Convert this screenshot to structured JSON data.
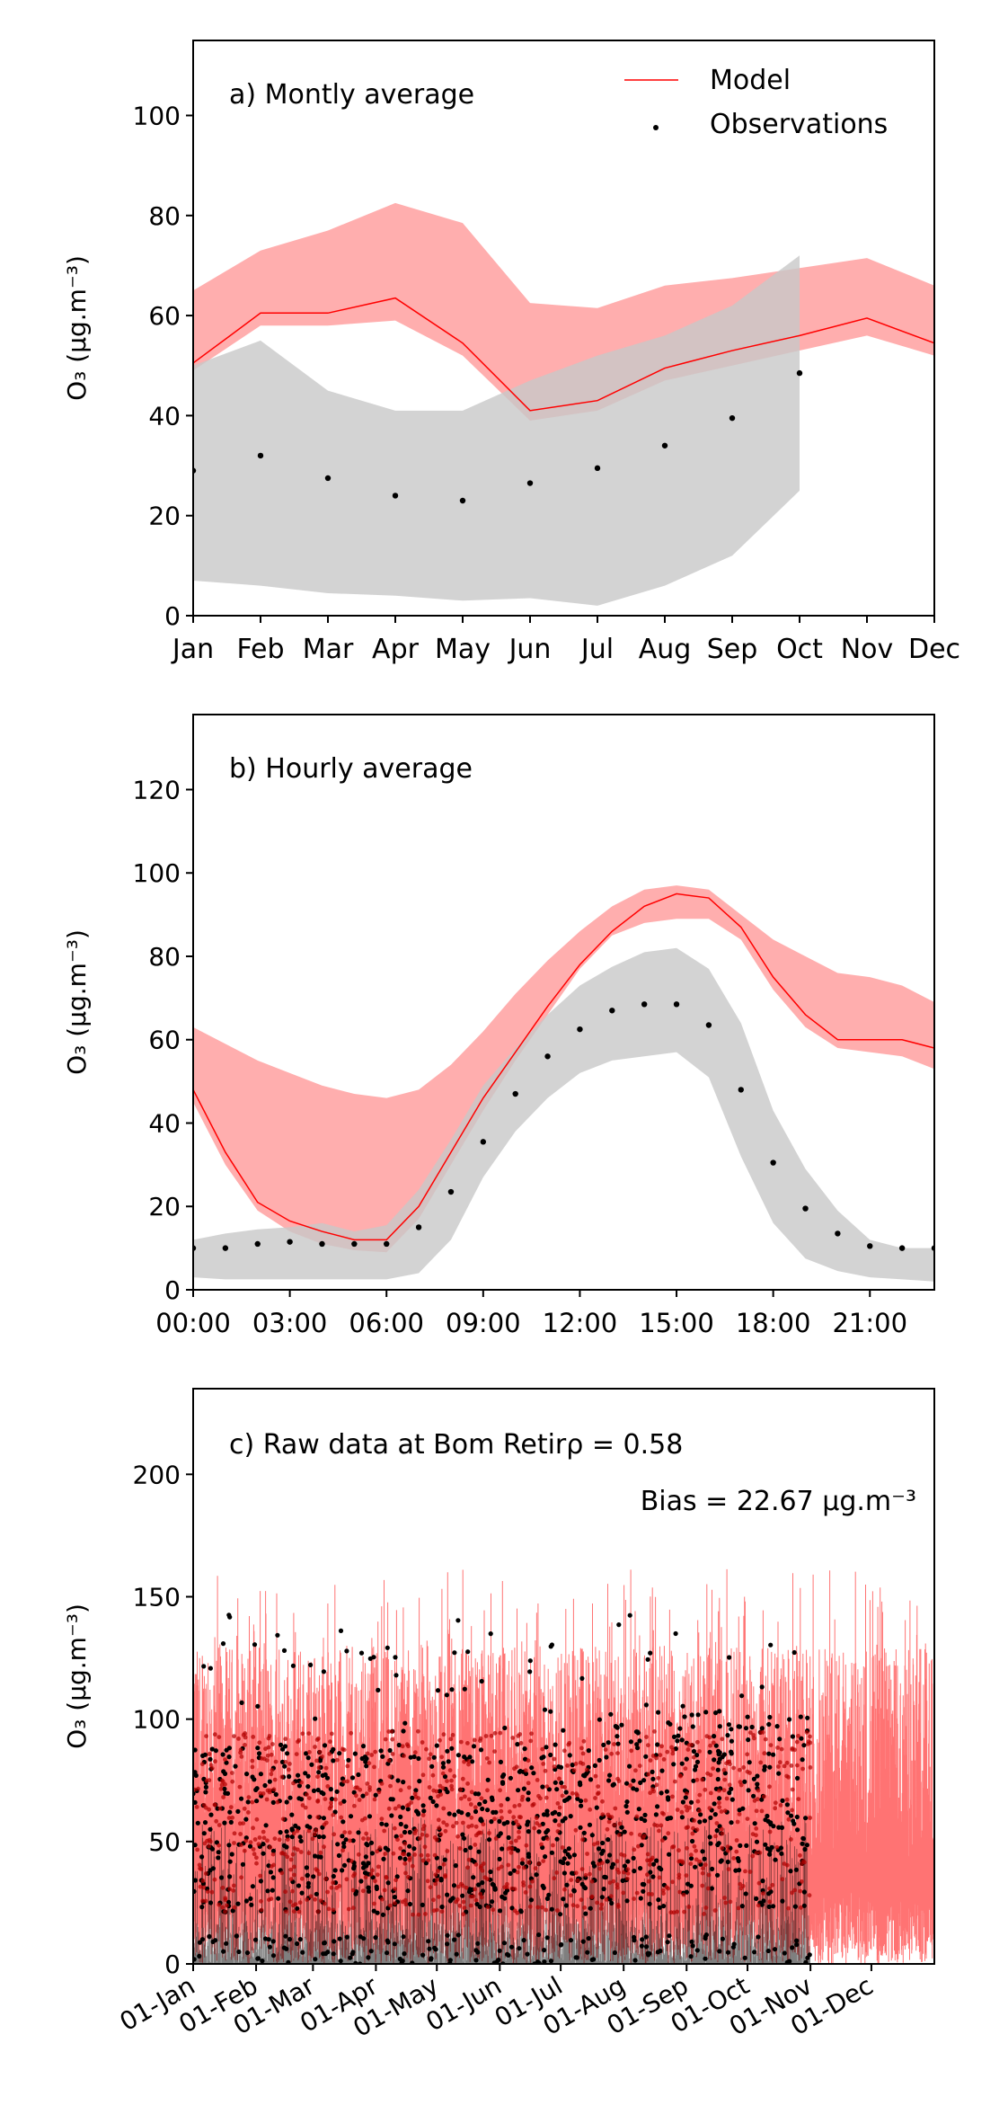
{
  "colors": {
    "model": "#ff0000",
    "model_band": "#ff9a9a",
    "obs": "#000000",
    "obs_band": "#c8c8c8",
    "axis": "#000000"
  },
  "chart_data": [
    {
      "type": "line",
      "panel_label": "a) Montly average",
      "ylabel": "O₃ (μg.m⁻³)",
      "ylim": [
        0,
        115
      ],
      "yticks": [
        0,
        20,
        40,
        60,
        80,
        100
      ],
      "categories": [
        "Jan",
        "Feb",
        "Mar",
        "Apr",
        "May",
        "Jun",
        "Jul",
        "Aug",
        "Sep",
        "Oct",
        "Nov",
        "Dec"
      ],
      "legend": {
        "placement": "top-right",
        "model_label": "Model",
        "obs_label": "Observations"
      },
      "model": {
        "values": [
          50.5,
          60.5,
          60.5,
          63.5,
          54.5,
          41,
          43,
          49.5,
          53,
          56,
          59.5,
          54.5
        ],
        "band_low": [
          49,
          58,
          58,
          59,
          52,
          39,
          41,
          47,
          50,
          53,
          56,
          52
        ],
        "band_high": [
          65,
          73,
          77,
          82.5,
          78.5,
          62.5,
          61.5,
          66,
          67.5,
          69.5,
          71.5,
          66
        ]
      },
      "obs": {
        "values": [
          29,
          32,
          27.5,
          24,
          23,
          26.5,
          29.5,
          34,
          39.5,
          48.5
        ],
        "band_low": [
          7,
          6,
          4.5,
          4,
          3,
          3.5,
          2,
          6,
          12,
          25
        ],
        "band_high": [
          50,
          55,
          45,
          41,
          41,
          47,
          52,
          56,
          62,
          72
        ]
      }
    },
    {
      "type": "line",
      "panel_label": "b) Hourly average",
      "ylabel": "O₃ (μg.m⁻³)",
      "ylim": [
        0,
        138
      ],
      "yticks": [
        0,
        20,
        40,
        60,
        80,
        100,
        120
      ],
      "xticks": [
        "00:00",
        "03:00",
        "06:00",
        "09:00",
        "12:00",
        "15:00",
        "18:00",
        "21:00"
      ],
      "x_hours": [
        0,
        1,
        2,
        3,
        4,
        5,
        6,
        7,
        8,
        9,
        10,
        11,
        12,
        13,
        14,
        15,
        16,
        17,
        18,
        19,
        20,
        21,
        22,
        23
      ],
      "model": {
        "values": [
          48,
          33,
          21,
          16.5,
          14,
          12,
          12,
          20,
          33,
          46,
          57,
          68,
          78,
          86,
          92,
          95,
          94,
          87,
          75,
          66,
          60,
          60,
          60,
          58
        ],
        "band_low": [
          45,
          30,
          19,
          14,
          11,
          9.5,
          9,
          17,
          30,
          43,
          55,
          66,
          77,
          85,
          88,
          89,
          89,
          84,
          72,
          63,
          58,
          57,
          56,
          53
        ],
        "band_high": [
          63,
          59,
          55,
          52,
          49,
          47,
          46,
          48,
          54,
          62,
          71,
          79,
          86,
          92,
          96,
          97,
          96,
          90,
          84,
          80,
          76,
          75,
          73,
          69
        ]
      },
      "obs": {
        "values": [
          10,
          10,
          11,
          11.5,
          11,
          11,
          11,
          15,
          23.5,
          35.5,
          47,
          56,
          62.5,
          67,
          68.5,
          68.5,
          63.5,
          48,
          30.5,
          19.5,
          13.5,
          10.5,
          10,
          10
        ],
        "band_low": [
          3,
          2.5,
          2.5,
          2.5,
          2.5,
          2.5,
          2.5,
          4,
          12,
          27,
          38,
          46,
          52,
          55,
          56,
          57,
          51,
          32,
          16,
          7.5,
          4.5,
          3,
          2.5,
          2
        ],
        "band_high": [
          12,
          13.5,
          14.5,
          15,
          16,
          14,
          15.5,
          24,
          36,
          49,
          58,
          66,
          73,
          77.5,
          81,
          82,
          77,
          64,
          43,
          29,
          19,
          12,
          10,
          10
        ]
      }
    },
    {
      "type": "line",
      "panel_label": "c) Raw data at Bom Retir",
      "rho_text": "ρ = 0.58",
      "bias_text": "Bias = 22.67 μg.m⁻³",
      "ylabel": "O₃ (μg.m⁻³)",
      "ylim": [
        0,
        235
      ],
      "yticks": [
        0,
        50,
        100,
        150,
        200
      ],
      "xticks": [
        "01-Jan",
        "01-Feb",
        "01-Mar",
        "01-Apr",
        "01-May",
        "01-Jun",
        "01-Jul",
        "01-Aug",
        "01-Sep",
        "01-Oct",
        "01-Nov",
        "01-Dec"
      ],
      "xtick_days": [
        0,
        31,
        59,
        90,
        120,
        151,
        181,
        212,
        243,
        273,
        304,
        334
      ],
      "x_range_days": [
        0,
        365
      ],
      "obs_end_day": 304,
      "model_typical_range": [
        0,
        150
      ],
      "obs_typical_range": [
        0,
        143
      ]
    }
  ]
}
